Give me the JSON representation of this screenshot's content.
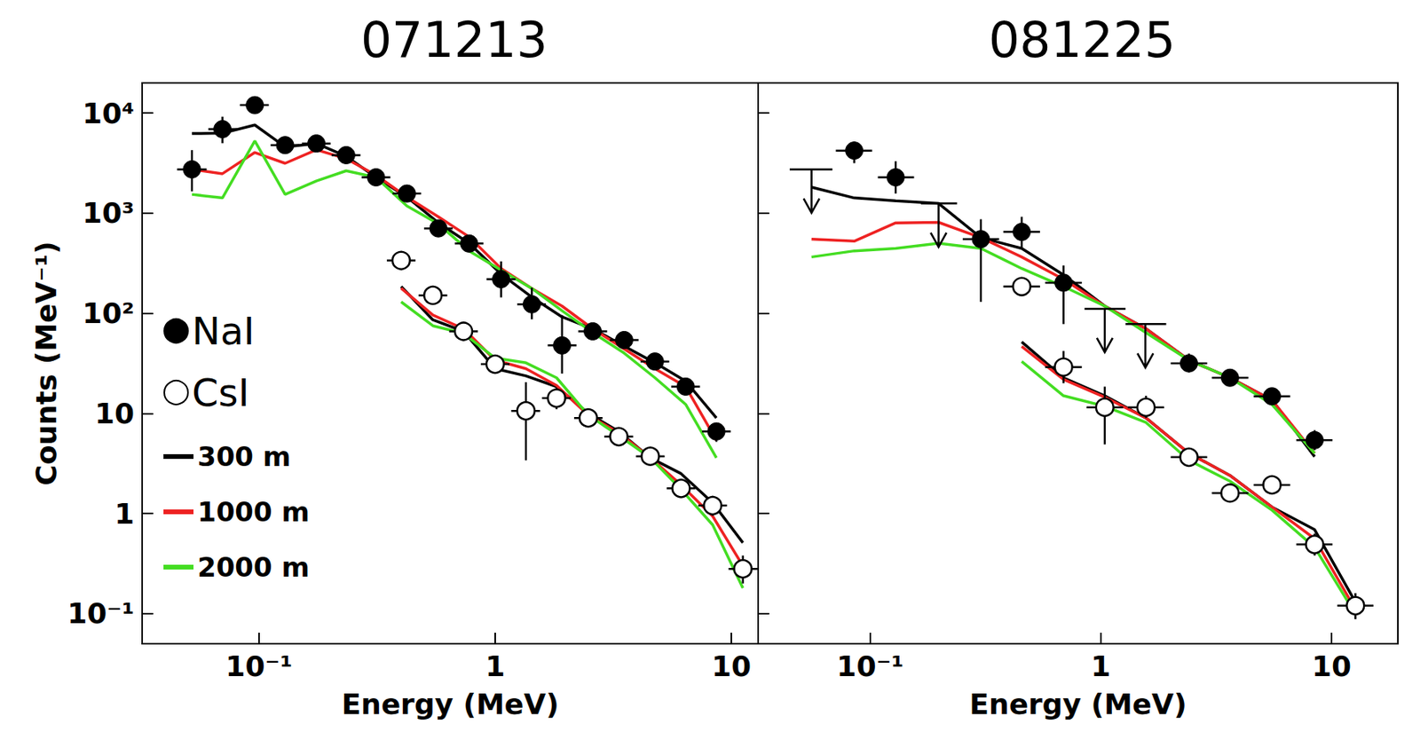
{
  "chart_data": [
    {
      "type": "scatter",
      "title": "071213",
      "x_label": "Energy (MeV)",
      "y_label": "Counts (MeV⁻¹)",
      "log": true,
      "grid": false,
      "legend": "lower left",
      "xlim": [
        0.032,
        13
      ],
      "ylim": [
        0.05,
        20000
      ],
      "xticks": [
        {
          "value": 0.1,
          "label": "10⁻¹"
        },
        1,
        10
      ],
      "yticks": [
        {
          "value": 0.1,
          "label": "10⁻¹"
        },
        1,
        10,
        {
          "value": 100,
          "label": "10²"
        },
        {
          "value": 1000,
          "label": "10³"
        },
        {
          "value": 10000,
          "label": "10⁴"
        }
      ],
      "series": [
        {
          "name": "NaI",
          "type": "scatter",
          "marker": "filled circle",
          "color": "#000000",
          "x": [
            0.052,
            0.07,
            0.096,
            0.129,
            0.175,
            0.234,
            0.313,
            0.423,
            0.575,
            0.776,
            1.06,
            1.43,
            1.92,
            2.59,
            3.52,
            4.75,
            6.41,
            8.65
          ],
          "values": [
            2740,
            6900,
            12000,
            4780,
            4970,
            3800,
            2280,
            1570,
            705,
            497,
            219,
            123,
            47.7,
            66,
            54,
            33,
            18.5,
            6.6
          ],
          "x_low": [
            0.045,
            0.061,
            0.083,
            0.112,
            0.152,
            0.203,
            0.272,
            0.368,
            0.5,
            0.675,
            0.92,
            1.24,
            1.67,
            2.25,
            3.06,
            4.13,
            5.57,
            7.52
          ],
          "x_high": [
            0.06,
            0.081,
            0.11,
            0.148,
            0.201,
            0.269,
            0.36,
            0.486,
            0.661,
            0.892,
            1.22,
            1.64,
            2.21,
            2.98,
            4.05,
            5.46,
            7.37,
            9.95
          ],
          "y_low": [
            1650,
            5000,
            10800,
            4000,
            4300,
            3300,
            2000,
            1350,
            600,
            420,
            144,
            87,
            25,
            57,
            47,
            28,
            15.5,
            5.2
          ],
          "y_high": [
            4260,
            9200,
            13200,
            5600,
            5700,
            4400,
            2600,
            1800,
            830,
            590,
            330,
            180,
            96,
            77,
            62,
            39,
            22,
            8.1
          ]
        },
        {
          "name": "CsI",
          "type": "scatter",
          "marker": "open circle",
          "color": "#000000",
          "x": [
            0.4,
            0.545,
            0.735,
            1.0,
            1.35,
            1.82,
            2.48,
            3.34,
            4.54,
            6.13,
            8.34,
            11.2
          ],
          "values": [
            337,
            151,
            66,
            31,
            10.6,
            14.2,
            9.0,
            5.86,
            3.73,
            1.78,
            1.2,
            0.28
          ],
          "x_low": [
            0.348,
            0.474,
            0.639,
            0.87,
            1.17,
            1.58,
            2.16,
            2.9,
            3.95,
            5.33,
            7.25,
            9.74
          ],
          "x_high": [
            0.46,
            0.627,
            0.845,
            1.15,
            1.55,
            2.09,
            2.85,
            3.84,
            5.22,
            7.05,
            9.59,
            12.9
          ],
          "y_low": [
            300,
            130,
            55,
            25,
            3.4,
            11,
            7.6,
            5.0,
            3.2,
            1.45,
            0.95,
            0.2
          ],
          "y_high": [
            380,
            175,
            78,
            38,
            20.5,
            18,
            10.6,
            6.8,
            4.3,
            2.2,
            1.5,
            0.38
          ]
        },
        {
          "name": "300 m",
          "type": "line",
          "color": "#000000",
          "x": [
            0.052,
            0.07,
            0.096,
            0.129,
            0.175,
            0.234,
            0.313,
            0.423,
            0.575,
            0.776,
            1.06,
            1.43,
            1.92,
            2.59,
            3.52,
            4.75,
            6.41,
            8.65,
            null,
            0.4,
            0.545,
            0.735,
            1.0,
            1.35,
            1.82,
            2.48,
            3.34,
            4.54,
            6.13,
            8.34,
            11.2
          ],
          "values": [
            6240,
            6300,
            7600,
            4600,
            4970,
            3700,
            2280,
            1450,
            800,
            500,
            246,
            145,
            92,
            70,
            47,
            32,
            21,
            9,
            null,
            185,
            86,
            66,
            28,
            23.7,
            18.5,
            10,
            6.6,
            3.6,
            2.5,
            1.28,
            0.51
          ]
        },
        {
          "name": "1000 m",
          "type": "line",
          "color": "#ee2222",
          "x": [
            0.052,
            0.07,
            0.096,
            0.129,
            0.175,
            0.234,
            0.313,
            0.423,
            0.575,
            0.776,
            1.06,
            1.43,
            1.92,
            2.59,
            3.52,
            4.75,
            6.41,
            8.65,
            null,
            0.4,
            0.545,
            0.735,
            1.0,
            1.35,
            1.82,
            2.48,
            3.34,
            4.54,
            6.13,
            8.34,
            11.2
          ],
          "values": [
            2740,
            2480,
            4040,
            3150,
            4300,
            3500,
            2400,
            1450,
            920,
            580,
            280,
            177,
            118,
            70,
            44,
            28,
            18.5,
            5.4,
            null,
            178,
            96,
            70,
            34,
            28,
            19,
            9.6,
            6.4,
            3.6,
            1.93,
            0.94,
            0.3
          ]
        },
        {
          "name": "2000 m",
          "type": "line",
          "color": "#44dd22",
          "x": [
            0.052,
            0.07,
            0.096,
            0.129,
            0.175,
            0.234,
            0.313,
            0.423,
            0.575,
            0.776,
            1.06,
            1.43,
            1.92,
            2.59,
            3.52,
            4.75,
            6.41,
            8.65,
            null,
            0.4,
            0.545,
            0.735,
            1.0,
            1.35,
            1.82,
            2.48,
            3.34,
            4.54,
            6.13,
            8.34,
            11.2
          ],
          "values": [
            1540,
            1420,
            5270,
            1540,
            2100,
            2650,
            2280,
            1180,
            780,
            420,
            270,
            177,
            106,
            64,
            40,
            22.7,
            12.3,
            3.6,
            null,
            130,
            75,
            63,
            35.7,
            32,
            22.7,
            9.6,
            6.0,
            3.6,
            1.74,
            0.77,
            0.18
          ]
        }
      ]
    },
    {
      "type": "scatter",
      "title": "081225",
      "x_label": "Energy (MeV)",
      "log": true,
      "grid": false,
      "tick_labels": "x",
      "xlim": [
        0.0327,
        19.4
      ],
      "ylim": [
        0.05,
        20000
      ],
      "xticks": [
        {
          "value": 0.1,
          "label": "10⁻¹"
        },
        1,
        10
      ],
      "yticks": [
        {
          "value": 0.1,
          "label": "10⁻¹"
        },
        1,
        10,
        {
          "value": 100,
          "label": "10²"
        },
        {
          "value": 1000,
          "label": "10³"
        },
        {
          "value": 10000,
          "label": "10⁴"
        }
      ],
      "series": [
        {
          "name": "NaI",
          "type": "scatter",
          "marker": "filled circle",
          "color": "#000000",
          "x": [
            0.0853,
            0.129,
            0.302,
            0.454,
            0.689,
            2.41,
            3.63,
            5.52,
            8.45
          ],
          "values": [
            4220,
            2280,
            550,
            650,
            202,
            31.6,
            22.7,
            14.8,
            5.4
          ],
          "x_low": [
            0.071,
            0.108,
            0.252,
            0.378,
            0.574,
            2.01,
            3.03,
            4.6,
            7.04
          ],
          "x_high": [
            0.102,
            0.155,
            0.362,
            0.545,
            0.827,
            2.89,
            4.36,
            6.62,
            10.1
          ],
          "y_low": [
            3160,
            1570,
            130,
            445,
            78,
            25.7,
            19,
            12.2,
            4.3
          ],
          "y_high": [
            5200,
            3300,
            870,
            920,
            300,
            39.6,
            27,
            18,
            6.8
          ],
          "upper_limits": {
            "x": [
              0.0557,
              0.198,
              1.04,
              1.56
            ],
            "values": [
              2740,
              1250,
              111,
              78
            ],
            "x_low": [
              0.0448,
              0.166,
              0.85,
              1.28
            ],
            "x_high": [
              0.0686,
              0.238,
              1.28,
              1.92
            ]
          }
        },
        {
          "name": "CsI",
          "type": "scatter",
          "marker": "open circle",
          "color": "#000000",
          "x": [
            0.454,
            0.689,
            1.04,
            1.57,
            2.41,
            3.63,
            5.52,
            8.45,
            12.7
          ],
          "values": [
            185,
            29,
            11.5,
            11.5,
            3.65,
            1.6,
            1.93,
            0.49,
            0.12
          ],
          "x_low": [
            0.378,
            0.574,
            0.867,
            1.31,
            2.01,
            3.03,
            4.6,
            7.04,
            10.6
          ],
          "x_high": [
            0.545,
            0.827,
            1.25,
            1.88,
            2.89,
            4.36,
            6.62,
            10.1,
            15.2
          ],
          "y_low": [
            170,
            20,
            4.9,
            9,
            3.0,
            1.3,
            1.6,
            0.38,
            0.088
          ],
          "y_high": [
            200,
            42,
            18.5,
            15,
            4.4,
            1.95,
            2.3,
            0.63,
            0.16
          ]
        },
        {
          "name": "300 m",
          "type": "line",
          "color": "#000000",
          "x": [
            0.0557,
            0.0853,
            0.129,
            0.198,
            0.302,
            0.454,
            0.689,
            1.04,
            1.57,
            2.41,
            3.63,
            5.52,
            8.45,
            null,
            0.454,
            0.689,
            1.04,
            1.57,
            2.41,
            3.63,
            5.52,
            8.45,
            12.7
          ],
          "values": [
            1820,
            1420,
            1330,
            1250,
            570,
            445,
            242,
            118,
            70,
            34,
            22.7,
            13.6,
            3.7,
            null,
            51.8,
            22.7,
            15,
            9,
            4,
            2.4,
            1.16,
            0.69,
            0.13
          ]
        },
        {
          "name": "1000 m",
          "type": "line",
          "color": "#ee2222",
          "x": [
            0.0557,
            0.0853,
            0.129,
            0.198,
            0.302,
            0.454,
            0.689,
            1.04,
            1.57,
            2.41,
            3.63,
            5.52,
            8.45,
            null,
            0.454,
            0.689,
            1.04,
            1.57,
            2.41,
            3.63,
            5.52,
            8.45,
            12.7
          ],
          "values": [
            550,
            525,
            800,
            810,
            570,
            365,
            219,
            118,
            70,
            34,
            22.7,
            13.6,
            4.0,
            null,
            46.7,
            21.8,
            14.5,
            9,
            4,
            2.4,
            1.16,
            0.56,
            0.11
          ]
        },
        {
          "name": "2000 m",
          "type": "line",
          "color": "#44dd22",
          "x": [
            0.0557,
            0.0853,
            0.129,
            0.198,
            0.302,
            0.454,
            0.689,
            1.04,
            1.57,
            2.41,
            3.63,
            5.52,
            8.45,
            null,
            0.454,
            0.689,
            1.04,
            1.57,
            2.41,
            3.63,
            5.52,
            8.45,
            12.7
          ],
          "values": [
            365,
            420,
            445,
            500,
            445,
            280,
            185,
            118,
            64,
            34,
            22.7,
            12.3,
            4.0,
            null,
            33,
            15,
            11.8,
            8.1,
            3.4,
            2.1,
            1.08,
            0.46,
            0.099
          ]
        }
      ]
    }
  ]
}
